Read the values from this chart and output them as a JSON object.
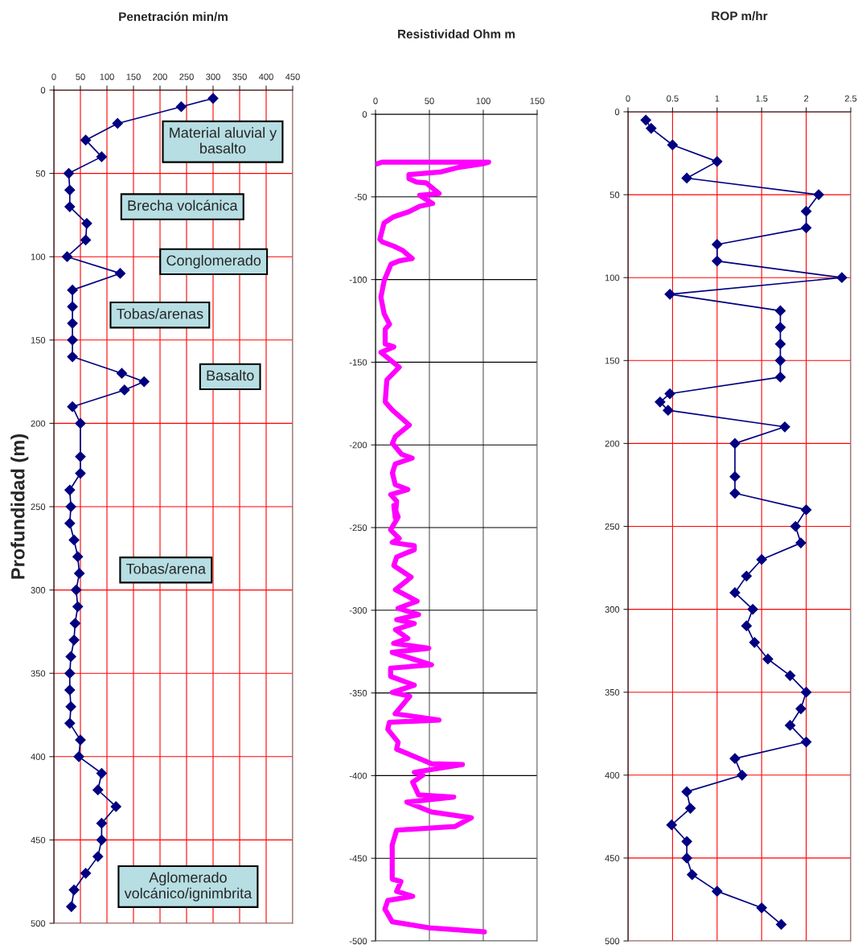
{
  "chart_data": [
    {
      "type": "line",
      "title": "Penetración min/m",
      "ylabel": "Profundidad (m)",
      "xlim": [
        0,
        450
      ],
      "xticks": [
        0,
        50,
        100,
        150,
        200,
        250,
        300,
        350,
        400,
        450
      ],
      "ylim": [
        500,
        0
      ],
      "yticks": [
        0,
        50,
        100,
        150,
        200,
        250,
        300,
        350,
        400,
        450,
        500
      ],
      "grid": true,
      "marker": "diamond",
      "series": [
        {
          "color": "#000080",
          "x": [
            300,
            240,
            120,
            60,
            90,
            28,
            30,
            30,
            62,
            60,
            25,
            125,
            35,
            35,
            35,
            35,
            35,
            128,
            170,
            133,
            35,
            50,
            50,
            50,
            30,
            32,
            30,
            38,
            45,
            48,
            42,
            45,
            40,
            38,
            32,
            30,
            30,
            32,
            30,
            50,
            47,
            90,
            83,
            117,
            90,
            90,
            83,
            60,
            38,
            33
          ],
          "values": [
            5,
            10,
            20,
            30,
            40,
            50,
            60,
            70,
            80,
            90,
            100,
            110,
            120,
            130,
            140,
            150,
            160,
            170,
            175,
            180,
            190,
            200,
            220,
            230,
            240,
            250,
            260,
            270,
            280,
            290,
            300,
            310,
            320,
            330,
            340,
            350,
            360,
            370,
            380,
            390,
            400,
            410,
            420,
            430,
            440,
            450,
            460,
            470,
            480,
            490
          ]
        }
      ],
      "annotations": [
        "Material aluvial y\nbasalto",
        "Brecha volcánica",
        "Conglomerado",
        "Tobas/arenas",
        "Basalto",
        "Tobas/arena",
        "Aglomerado\nvolcánico/ignimbrita"
      ]
    },
    {
      "type": "line",
      "title": "Resistividad Ohm m",
      "xlim": [
        0,
        150
      ],
      "xticks": [
        0,
        50,
        100,
        150
      ],
      "ylim": [
        -500,
        0
      ],
      "yticks": [
        0,
        -50,
        -100,
        -150,
        -200,
        -250,
        -300,
        -350,
        -400,
        -450,
        -500
      ],
      "grid": true,
      "series": [
        {
          "color": "#ff00ff",
          "x": [
            0.5,
            6,
            105,
            99.5,
            76,
            60,
            31,
            31,
            38,
            47,
            59,
            41,
            53,
            41,
            31,
            17,
            8,
            4,
            6.5,
            17,
            25,
            34,
            22,
            14.4,
            8,
            5,
            8,
            13,
            9,
            9,
            17,
            5,
            22,
            10.5,
            9,
            15.7,
            31.4,
            18.3,
            15.7,
            24.3,
            34,
            18.3,
            15.7,
            18.3,
            30,
            14.1,
            19.6,
            18.3,
            17,
            21,
            14,
            22,
            15.5,
            36,
            36,
            19.6,
            17,
            33,
            18.5,
            38.6,
            20.9,
            40,
            19.6,
            36,
            18.5,
            30,
            16.8,
            49.5,
            15.5,
            52,
            14,
            14,
            36,
            15.5,
            31.8,
            18.2,
            59,
            12.8,
            11.4,
            21,
            19.6,
            52,
            80.7,
            36,
            44,
            34.5,
            40,
            72.6,
            29,
            52,
            89,
            74,
            19.6,
            15.5,
            15.5,
            23.6,
            19.6,
            34.5,
            11.4,
            8.7,
            15.5,
            49.5,
            101
          ],
          "values": [
            -30.2,
            -29,
            -29,
            -30,
            -32.3,
            -35,
            -36.5,
            -39,
            -41,
            -41.5,
            -48,
            -49,
            -54,
            -55.7,
            -59,
            -62,
            -65.7,
            -75.7,
            -77.3,
            -79.8,
            -82.3,
            -87.3,
            -88.7,
            -90.7,
            -100.7,
            -110.7,
            -120.7,
            -127,
            -130,
            -139,
            -140.7,
            -144,
            -153,
            -160.7,
            -174,
            -179,
            -188,
            -195,
            -199,
            -205.7,
            -208,
            -211.5,
            -217,
            -224,
            -227,
            -230,
            -234,
            -244,
            -236.7,
            -243.6,
            -251.4,
            -256.6,
            -259,
            -261,
            -263.4,
            -267.8,
            -273,
            -280,
            -287.6,
            -294.5,
            -298.8,
            -302.6,
            -305.7,
            -308,
            -311.7,
            -317,
            -320,
            -323,
            -325.5,
            -333,
            -335,
            -340,
            -345.3,
            -349.7,
            -352,
            -362.6,
            -366.4,
            -367.8,
            -372,
            -379.8,
            -384,
            -392.8,
            -393.3,
            -398,
            -399.7,
            -404,
            -411.7,
            -413,
            -416,
            -422,
            -425.5,
            -430.7,
            -433,
            -441.9,
            -462.6,
            -464,
            -470,
            -473,
            -475.5,
            -480.7,
            -488.4,
            -492,
            -494.5
          ]
        }
      ]
    },
    {
      "type": "line",
      "title": "ROP m/hr",
      "xlim": [
        0,
        2.5
      ],
      "xticks": [
        0,
        0.5,
        1,
        1.5,
        2,
        2.5
      ],
      "ylim": [
        500,
        0
      ],
      "yticks": [
        0,
        50,
        100,
        150,
        200,
        250,
        300,
        350,
        400,
        450,
        500
      ],
      "grid": true,
      "marker": "diamond",
      "series": [
        {
          "color": "#000080",
          "x": [
            0.2,
            0.26,
            0.5,
            1.0,
            0.66,
            2.14,
            2.0,
            2.0,
            1.0,
            1.0,
            2.4,
            0.47,
            1.71,
            1.71,
            1.71,
            1.71,
            1.71,
            0.47,
            0.36,
            0.45,
            1.76,
            1.2,
            1.2,
            1.2,
            2.0,
            1.88,
            1.94,
            1.5,
            1.33,
            1.2,
            1.4,
            1.33,
            1.42,
            1.57,
            1.82,
            2.0,
            1.94,
            1.82,
            2.0,
            1.2,
            1.28,
            0.66,
            0.7,
            0.49,
            0.66,
            0.66,
            0.72,
            1.0,
            1.5,
            1.72
          ],
          "values": [
            5,
            10,
            20,
            30,
            40,
            50,
            60,
            70,
            80,
            90,
            100,
            110,
            120,
            130,
            140,
            150,
            160,
            170,
            175,
            180,
            190,
            200,
            220,
            230,
            240,
            250,
            260,
            270,
            280,
            290,
            300,
            310,
            320,
            330,
            340,
            350,
            360,
            370,
            380,
            390,
            400,
            410,
            420,
            430,
            440,
            450,
            460,
            470,
            480,
            490
          ]
        }
      ]
    }
  ]
}
